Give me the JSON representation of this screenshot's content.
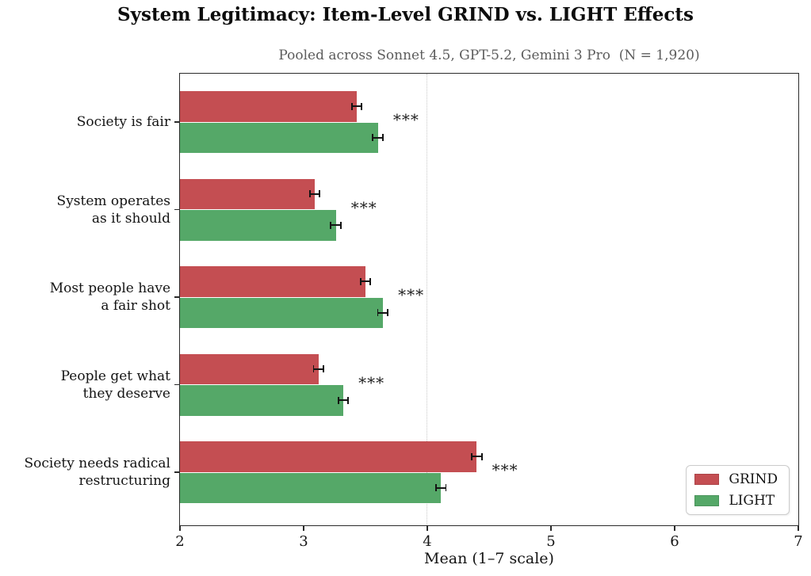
{
  "title": "System Legitimacy: Item-Level GRIND vs. LIGHT Effects",
  "subtitle": "Pooled across Sonnet 4.5, GPT-5.2, Gemini 3 Pro  (N = 1,920)",
  "chart_data": {
    "type": "bar",
    "orientation": "horizontal",
    "title": "System Legitimacy: Item-Level GRIND vs. LIGHT Effects",
    "subtitle": "Pooled across Sonnet 4.5, GPT-5.2, Gemini 3 Pro  (N = 1,920)",
    "categories": [
      "Society is fair",
      "System operates\nas it should",
      "Most people have\na fair shot",
      "People get what\nthey deserve",
      "Society needs radical\nrestructuring"
    ],
    "series": [
      {
        "name": "GRIND",
        "color": "#c44e52",
        "values": [
          3.43,
          3.09,
          3.5,
          3.12,
          4.4
        ],
        "errors": [
          0.04,
          0.04,
          0.04,
          0.04,
          0.04
        ]
      },
      {
        "name": "LIGHT",
        "color": "#55a868",
        "values": [
          3.6,
          3.26,
          3.64,
          3.32,
          4.11
        ],
        "errors": [
          0.04,
          0.04,
          0.04,
          0.04,
          0.04
        ]
      }
    ],
    "significance": [
      "***",
      "***",
      "***",
      "***",
      "***"
    ],
    "xlabel": "Mean (1–7 scale)",
    "xlim": [
      2,
      7
    ],
    "xticks": [
      "2",
      "3",
      "4",
      "5",
      "6",
      "7"
    ],
    "refline": 4,
    "grid": "refline-only",
    "legend_position": "lower right",
    "error_bar_color": "#141414",
    "frame_color": "#2b2b2b"
  }
}
